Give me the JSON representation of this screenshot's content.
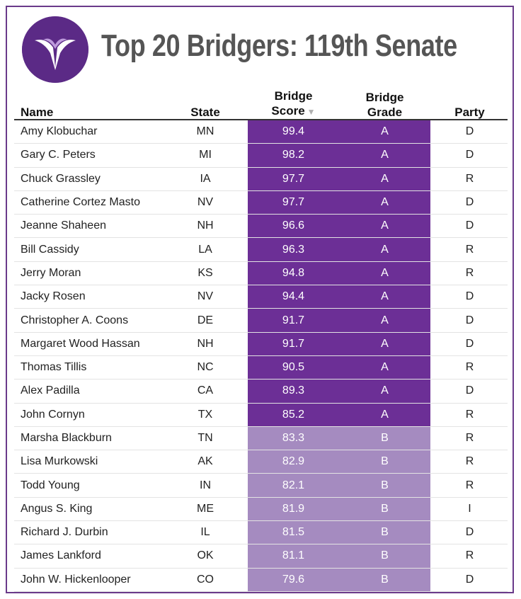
{
  "title": "Top 20 Bridgers: 119th Senate",
  "colors": {
    "grade_A": "#6c2f96",
    "grade_B": "#a58bc0",
    "frame": "#6a3a8a",
    "logo_bg": "#5b2a86"
  },
  "columns": {
    "name": "Name",
    "state": "State",
    "score_line1": "Bridge",
    "score_line2": "Score",
    "grade_line1": "Bridge",
    "grade_line2": "Grade",
    "party": "Party"
  },
  "sort_icon": "triangle-down-icon",
  "rows": [
    {
      "name": "Amy Klobuchar",
      "state": "MN",
      "score": "99.4",
      "grade": "A",
      "party": "D"
    },
    {
      "name": "Gary C. Peters",
      "state": "MI",
      "score": "98.2",
      "grade": "A",
      "party": "D"
    },
    {
      "name": "Chuck Grassley",
      "state": "IA",
      "score": "97.7",
      "grade": "A",
      "party": "R"
    },
    {
      "name": "Catherine Cortez Masto",
      "state": "NV",
      "score": "97.7",
      "grade": "A",
      "party": "D"
    },
    {
      "name": "Jeanne Shaheen",
      "state": "NH",
      "score": "96.6",
      "grade": "A",
      "party": "D"
    },
    {
      "name": "Bill Cassidy",
      "state": "LA",
      "score": "96.3",
      "grade": "A",
      "party": "R"
    },
    {
      "name": "Jerry Moran",
      "state": "KS",
      "score": "94.8",
      "grade": "A",
      "party": "R"
    },
    {
      "name": "Jacky Rosen",
      "state": "NV",
      "score": "94.4",
      "grade": "A",
      "party": "D"
    },
    {
      "name": "Christopher A. Coons",
      "state": "DE",
      "score": "91.7",
      "grade": "A",
      "party": "D"
    },
    {
      "name": "Margaret Wood Hassan",
      "state": "NH",
      "score": "91.7",
      "grade": "A",
      "party": "D"
    },
    {
      "name": "Thomas Tillis",
      "state": "NC",
      "score": "90.5",
      "grade": "A",
      "party": "R"
    },
    {
      "name": "Alex Padilla",
      "state": "CA",
      "score": "89.3",
      "grade": "A",
      "party": "D"
    },
    {
      "name": "John Cornyn",
      "state": "TX",
      "score": "85.2",
      "grade": "A",
      "party": "R"
    },
    {
      "name": "Marsha Blackburn",
      "state": "TN",
      "score": "83.3",
      "grade": "B",
      "party": "R"
    },
    {
      "name": "Lisa Murkowski",
      "state": "AK",
      "score": "82.9",
      "grade": "B",
      "party": "R"
    },
    {
      "name": "Todd Young",
      "state": "IN",
      "score": "82.1",
      "grade": "B",
      "party": "R"
    },
    {
      "name": "Angus S. King",
      "state": "ME",
      "score": "81.9",
      "grade": "B",
      "party": "I"
    },
    {
      "name": "Richard J. Durbin",
      "state": "IL",
      "score": "81.5",
      "grade": "B",
      "party": "D"
    },
    {
      "name": "James Lankford",
      "state": "OK",
      "score": "81.1",
      "grade": "B",
      "party": "R"
    },
    {
      "name": "John W. Hickenlooper",
      "state": "CO",
      "score": "79.6",
      "grade": "B",
      "party": "D"
    }
  ]
}
